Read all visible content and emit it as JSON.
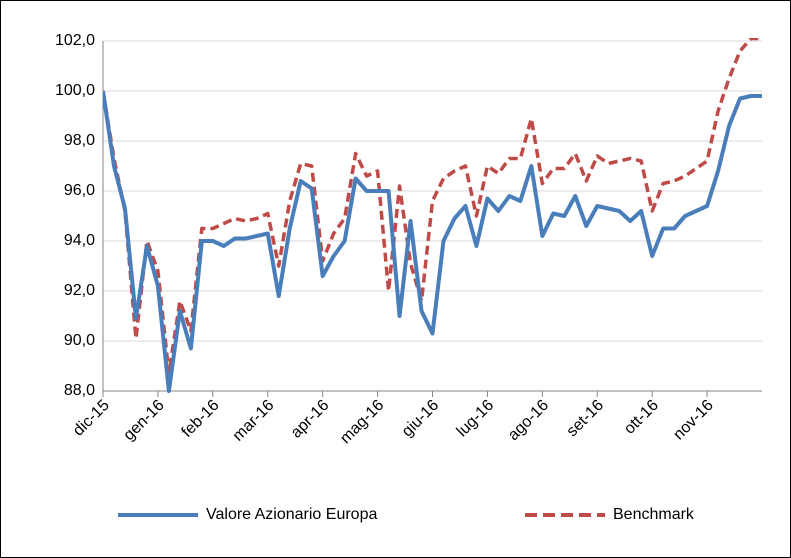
{
  "chart_data": {
    "type": "line",
    "categories": [
      "dic-15",
      null,
      null,
      null,
      null,
      "gen-16",
      null,
      null,
      null,
      null,
      "feb-16",
      null,
      null,
      null,
      null,
      "mar-16",
      null,
      null,
      null,
      null,
      "apr-16",
      null,
      null,
      null,
      null,
      "mag-16",
      null,
      null,
      null,
      null,
      "giu-16",
      null,
      null,
      null,
      null,
      "lug-16",
      null,
      null,
      null,
      null,
      "ago-16",
      null,
      null,
      null,
      null,
      "set-16",
      null,
      null,
      null,
      null,
      "ott-16",
      null,
      null,
      null,
      null,
      "nov-16",
      null,
      null,
      null,
      null,
      null
    ],
    "series": [
      {
        "name": "Valore Azionario Europa",
        "color": "#4a7ebb",
        "dash": false,
        "values": [
          100.0,
          97.0,
          95.3,
          90.9,
          93.8,
          92.2,
          88.0,
          91.2,
          89.7,
          94.0,
          94.0,
          93.8,
          94.1,
          94.1,
          94.2,
          94.3,
          91.8,
          94.5,
          96.4,
          96.1,
          92.6,
          93.4,
          94.0,
          96.5,
          96.0,
          96.0,
          96.0,
          91.0,
          94.8,
          91.2,
          90.3,
          94.0,
          94.9,
          95.4,
          93.8,
          95.7,
          95.2,
          95.8,
          95.6,
          97.0,
          94.2,
          95.1,
          95.0,
          95.8,
          94.6,
          95.4,
          95.3,
          95.2,
          94.8,
          95.2,
          93.4,
          94.5,
          94.5,
          95.0,
          95.2,
          95.4,
          96.8,
          98.6,
          99.7,
          99.8,
          99.8
        ]
      },
      {
        "name": "Benchmark",
        "color": "#be4b48",
        "dash": true,
        "values": [
          100.0,
          97.3,
          95.2,
          90.1,
          94.0,
          92.8,
          88.7,
          91.6,
          90.4,
          94.5,
          94.5,
          94.7,
          94.9,
          94.8,
          94.9,
          95.1,
          93.0,
          95.6,
          97.1,
          97.0,
          93.2,
          94.3,
          94.9,
          97.5,
          96.6,
          96.8,
          92.0,
          96.2,
          93.1,
          91.6,
          95.6,
          96.5,
          96.8,
          97.0,
          95.0,
          97.0,
          96.7,
          97.3,
          97.3,
          98.9,
          96.3,
          96.9,
          96.9,
          97.5,
          96.4,
          97.4,
          97.1,
          97.2,
          97.3,
          97.2,
          95.2,
          96.3,
          96.4,
          96.6,
          96.9,
          97.2,
          99.2,
          100.5,
          101.6,
          102.1,
          102.1
        ]
      }
    ],
    "ylim": [
      88,
      102
    ],
    "yticks": [
      {
        "value": 88,
        "label": "88,0"
      },
      {
        "value": 90,
        "label": "90,0"
      },
      {
        "value": 92,
        "label": "92,0"
      },
      {
        "value": 94,
        "label": "94,0"
      },
      {
        "value": 96,
        "label": "96,0"
      },
      {
        "value": 98,
        "label": "98,0"
      },
      {
        "value": 100,
        "label": "100,0"
      },
      {
        "value": 102,
        "label": "102,0"
      }
    ],
    "grid": true,
    "legend": "bottom"
  }
}
